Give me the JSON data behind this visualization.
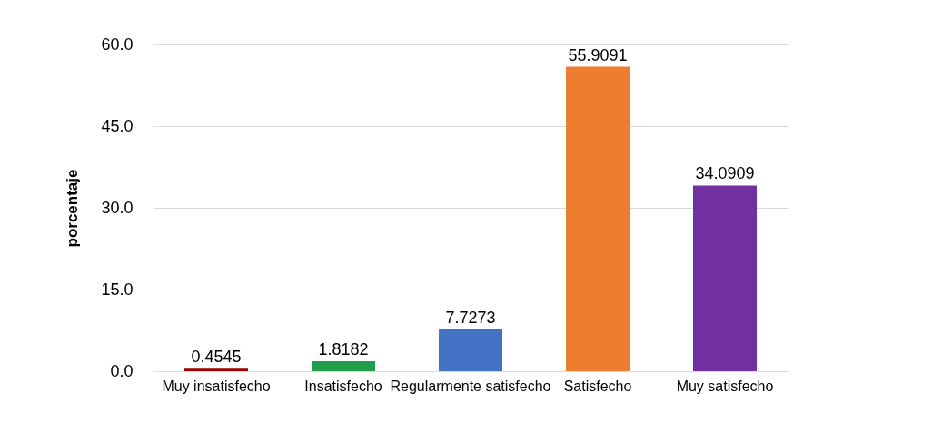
{
  "chart_data": {
    "type": "bar",
    "ylabel": "porcentaje",
    "categories": [
      "Muy insatisfecho",
      "Insatisfecho",
      "Regularmente satisfecho",
      "Satisfecho",
      "Muy satisfecho"
    ],
    "values": [
      0.4545,
      1.8182,
      7.7273,
      55.9091,
      34.0909
    ],
    "colors": [
      "#9b0000",
      "#1e9e4a",
      "#4472c4",
      "#ed7d31",
      "#7030a0"
    ],
    "ylim": [
      0,
      60
    ],
    "yticks": [
      {
        "value": 0,
        "label": "0.0"
      },
      {
        "value": 15,
        "label": "15.0"
      },
      {
        "value": 30,
        "label": "30.0"
      },
      {
        "value": 45,
        "label": "45.0"
      },
      {
        "value": 60,
        "label": "60.0"
      }
    ],
    "grid": "y",
    "data_labels": true
  }
}
